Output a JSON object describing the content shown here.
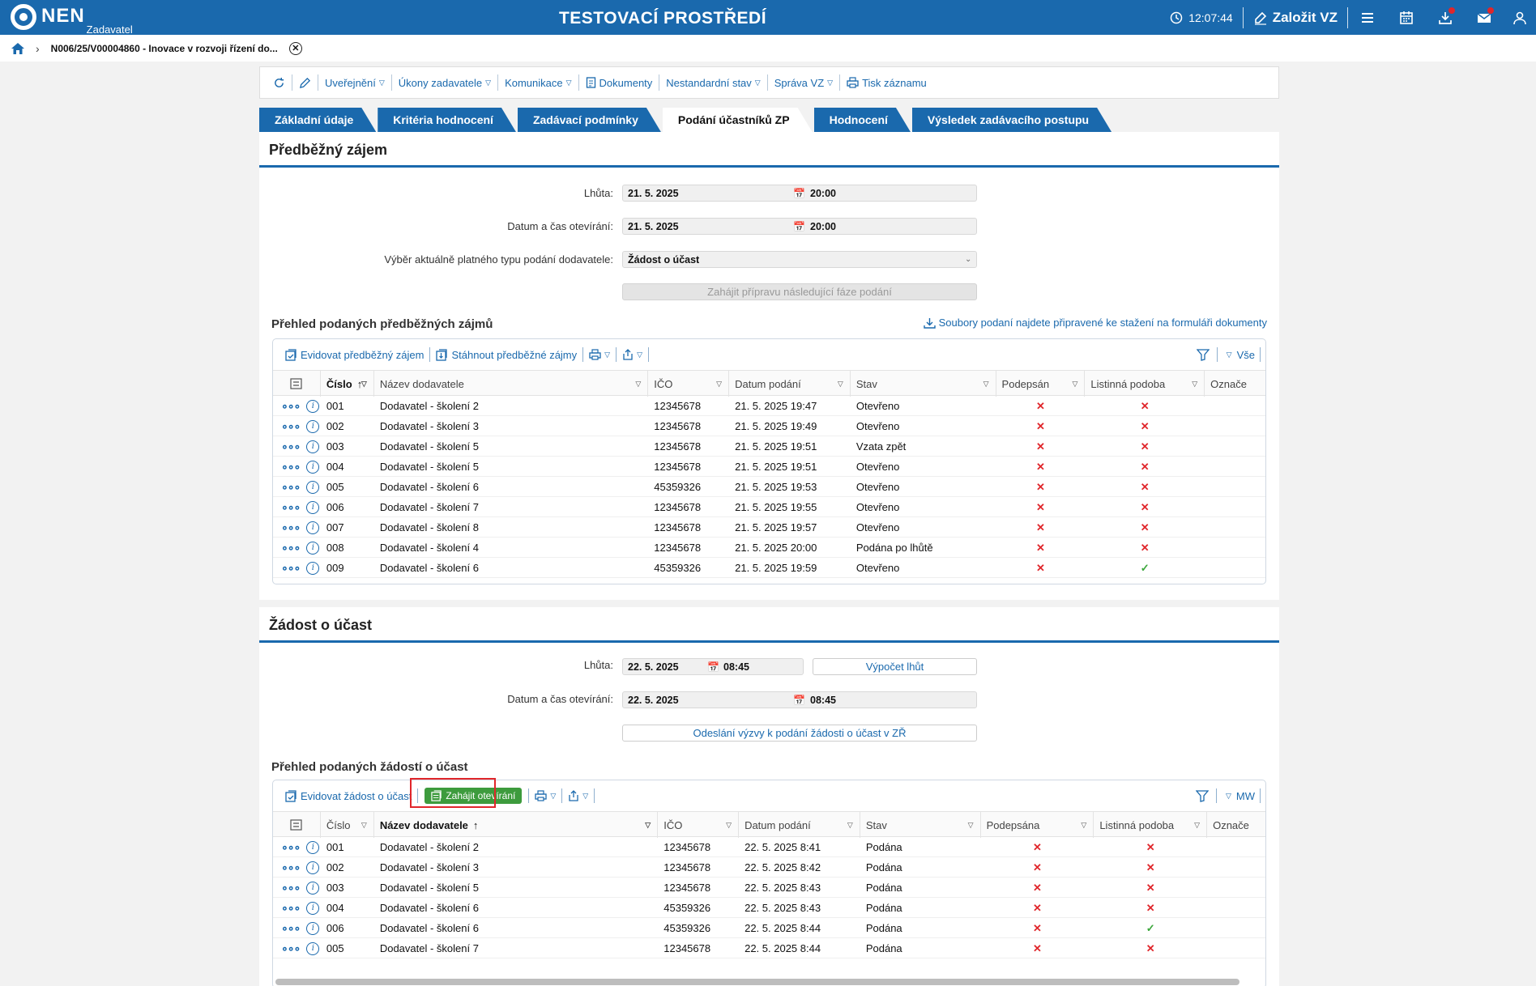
{
  "header": {
    "logo_text": "NEN",
    "logo_sub": "Zadavatel",
    "environment": "TESTOVACÍ PROSTŘEDÍ",
    "time": "12:07:44",
    "create_label": "Založit VZ"
  },
  "breadcrumb": {
    "item": "N006/25/V00004860 - Inovace v rozvoji řízení do..."
  },
  "toolbar": {
    "items": [
      "Uveřejnění",
      "Úkony zadavatele",
      "Komunikace",
      "Dokumenty",
      "Nestandardní stav",
      "Správa VZ",
      "Tisk záznamu"
    ]
  },
  "tabs": [
    "Základní údaje",
    "Kritéria hodnocení",
    "Zadávací podmínky",
    "Podání účastníků ZP",
    "Hodnocení",
    "Výsledek zadávacího postupu"
  ],
  "active_tab": "Podání účastníků ZP",
  "prelim": {
    "title": "Předběžný zájem",
    "deadline_label": "Lhůta:",
    "deadline_date": "21. 5. 2025",
    "deadline_time": "20:00",
    "opening_label": "Datum a čas otevírání:",
    "opening_date": "21. 5. 2025",
    "opening_time": "20:00",
    "type_label": "Výběr aktuálně platného typu podání dodavatele:",
    "type_value": "Žádost o účast",
    "next_phase_button": "Zahájit přípravu následující fáze podání",
    "list_title": "Přehled podaných předběžných zájmů",
    "files_link": "Soubory podaní najdete připravené ke stažení na formuláři dokumenty",
    "grid_actions": [
      "Evidovat předběžný zájem",
      "Stáhnout předběžné zájmy"
    ],
    "grid_filter_label": "Vše",
    "columns": [
      "Číslo",
      "Název dodavatele",
      "IČO",
      "Datum podání",
      "Stav",
      "Podepsán",
      "Listinná podoba",
      "Označe"
    ],
    "rows": [
      {
        "cislo": "001",
        "nazev": "Dodavatel - školení 2",
        "ico": "12345678",
        "datum": "21. 5. 2025 19:47",
        "stav": "Otevřeno",
        "podepsan": false,
        "listinna": false
      },
      {
        "cislo": "002",
        "nazev": "Dodavatel - školení 3",
        "ico": "12345678",
        "datum": "21. 5. 2025 19:49",
        "stav": "Otevřeno",
        "podepsan": false,
        "listinna": false
      },
      {
        "cislo": "003",
        "nazev": "Dodavatel - školení 5",
        "ico": "12345678",
        "datum": "21. 5. 2025 19:51",
        "stav": "Vzata zpět",
        "podepsan": false,
        "listinna": false
      },
      {
        "cislo": "004",
        "nazev": "Dodavatel - školení 5",
        "ico": "12345678",
        "datum": "21. 5. 2025 19:51",
        "stav": "Otevřeno",
        "podepsan": false,
        "listinna": false
      },
      {
        "cislo": "005",
        "nazev": "Dodavatel - školení 6",
        "ico": "45359326",
        "datum": "21. 5. 2025 19:53",
        "stav": "Otevřeno",
        "podepsan": false,
        "listinna": false
      },
      {
        "cislo": "006",
        "nazev": "Dodavatel - školení 7",
        "ico": "12345678",
        "datum": "21. 5. 2025 19:55",
        "stav": "Otevřeno",
        "podepsan": false,
        "listinna": false
      },
      {
        "cislo": "007",
        "nazev": "Dodavatel - školení 8",
        "ico": "12345678",
        "datum": "21. 5. 2025 19:57",
        "stav": "Otevřeno",
        "podepsan": false,
        "listinna": false
      },
      {
        "cislo": "008",
        "nazev": "Dodavatel - školení 4",
        "ico": "12345678",
        "datum": "21. 5. 2025 20:00",
        "stav": "Podána po lhůtě",
        "podepsan": false,
        "listinna": false
      },
      {
        "cislo": "009",
        "nazev": "Dodavatel - školení 6",
        "ico": "45359326",
        "datum": "21. 5. 2025 19:59",
        "stav": "Otevřeno",
        "podepsan": false,
        "listinna": true
      }
    ]
  },
  "request": {
    "title": "Žádost o účast",
    "deadline_label": "Lhůta:",
    "deadline_date": "22. 5. 2025",
    "deadline_time": "08:45",
    "calc_button": "Výpočet lhůt",
    "opening_label": "Datum a čas otevírání:",
    "opening_date": "22. 5. 2025",
    "opening_time": "08:45",
    "invite_button": "Odeslání výzvy k podání žádosti o účast v ZŘ",
    "list_title": "Přehled podaných žádostí o účast",
    "grid_actions": [
      "Evidovat žádost o účast"
    ],
    "open_button": "Zahájit otevírání",
    "grid_filter_label": "MW",
    "columns": [
      "Číslo",
      "Název dodavatele",
      "IČO",
      "Datum podání",
      "Stav",
      "Podepsána",
      "Listinná podoba",
      "Označe"
    ],
    "rows": [
      {
        "cislo": "001",
        "nazev": "Dodavatel - školení 2",
        "ico": "12345678",
        "datum": "22. 5. 2025 8:41",
        "stav": "Podána",
        "podepsan": false,
        "listinna": false
      },
      {
        "cislo": "002",
        "nazev": "Dodavatel - školení 3",
        "ico": "12345678",
        "datum": "22. 5. 2025 8:42",
        "stav": "Podána",
        "podepsan": false,
        "listinna": false
      },
      {
        "cislo": "003",
        "nazev": "Dodavatel - školení 5",
        "ico": "12345678",
        "datum": "22. 5. 2025 8:43",
        "stav": "Podána",
        "podepsan": false,
        "listinna": false
      },
      {
        "cislo": "004",
        "nazev": "Dodavatel - školení 6",
        "ico": "45359326",
        "datum": "22. 5. 2025 8:43",
        "stav": "Podána",
        "podepsan": false,
        "listinna": false
      },
      {
        "cislo": "006",
        "nazev": "Dodavatel - školení 6",
        "ico": "45359326",
        "datum": "22. 5. 2025 8:44",
        "stav": "Podána",
        "podepsan": false,
        "listinna": true
      },
      {
        "cislo": "005",
        "nazev": "Dodavatel - školení 7",
        "ico": "12345678",
        "datum": "22. 5. 2025 8:44",
        "stav": "Podána",
        "podepsan": false,
        "listinna": false
      }
    ]
  },
  "colors": {
    "brand": "#1a69ad",
    "danger": "#e0262b",
    "success": "#3d9b3d"
  }
}
